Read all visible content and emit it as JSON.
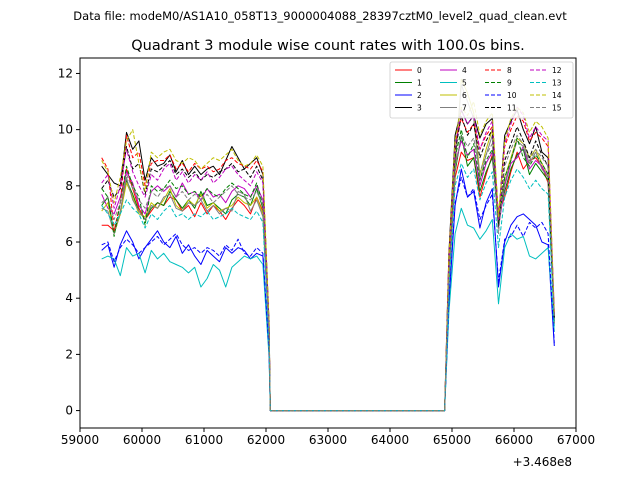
{
  "figure": {
    "suptitle": "Data file: modeM0/AS1A10_058T13_9000004088_28397cztM0_level2_quad_clean.evt"
  },
  "chart_data": {
    "type": "line",
    "title": "Quadrant 3 module wise count rates with 100.0s bins.",
    "xlabel": "",
    "ylabel": "",
    "x_offset_label": "+3.468e8",
    "xlim": [
      59000,
      67000
    ],
    "ylim": [
      -0.62,
      12.55
    ],
    "x_ticks": [
      59000,
      60000,
      61000,
      62000,
      63000,
      64000,
      65000,
      66000,
      67000
    ],
    "x_tick_labels": [
      "59000",
      "60000",
      "61000",
      "62000",
      "63000",
      "64000",
      "65000",
      "66000",
      "67000"
    ],
    "y_ticks": [
      0,
      2,
      4,
      6,
      8,
      10,
      12
    ],
    "y_tick_labels": [
      "0",
      "2",
      "4",
      "6",
      "8",
      "10",
      "12"
    ],
    "grid": false,
    "legend_position": "top-right",
    "legend_columns": 4,
    "gaps": [
      [
        62070,
        64880
      ]
    ],
    "segments": [
      {
        "x0": 59350,
        "step": 100,
        "n": 28
      },
      {
        "x0": 64950,
        "step": 100,
        "n": 18
      }
    ],
    "series": [
      {
        "name": "0",
        "color": "#ff0000",
        "dash": false,
        "seg1": [
          6.6,
          6.6,
          6.4,
          7.0,
          8.6,
          7.9,
          7.2,
          6.8,
          7.1,
          7.4,
          7.3,
          7.6,
          7.5,
          7.1,
          7.3,
          6.9,
          7.4,
          7.0,
          7.3,
          7.1,
          6.8,
          7.2,
          7.5,
          7.3,
          7.0,
          7.6,
          7.1,
          2.6
        ],
        "seg2": [
          4.5,
          8.3,
          9.2,
          8.9,
          9.0,
          7.6,
          8.4,
          9.1,
          7.0,
          7.6,
          8.5,
          9.2,
          8.6,
          8.9,
          9.0,
          8.7,
          8.1,
          3.2
        ]
      },
      {
        "name": "1",
        "color": "#008000",
        "dash": false,
        "seg1": [
          7.3,
          7.6,
          6.3,
          7.0,
          8.2,
          7.7,
          7.1,
          6.8,
          7.2,
          7.4,
          7.3,
          7.8,
          7.5,
          7.2,
          7.5,
          7.2,
          7.8,
          7.3,
          7.4,
          7.2,
          7.0,
          7.5,
          7.7,
          7.6,
          7.3,
          7.9,
          7.2,
          2.6
        ],
        "seg2": [
          4.5,
          8.5,
          9.8,
          8.7,
          9.0,
          7.8,
          8.5,
          9.0,
          6.8,
          7.8,
          8.6,
          9.1,
          9.3,
          8.4,
          8.8,
          8.5,
          8.2,
          3.1
        ]
      },
      {
        "name": "2",
        "color": "#0000ff",
        "dash": false,
        "seg1": [
          5.7,
          5.9,
          5.1,
          5.9,
          6.4,
          6.0,
          5.4,
          5.8,
          6.1,
          6.4,
          6.0,
          5.8,
          6.2,
          5.6,
          5.9,
          5.5,
          5.2,
          5.7,
          5.5,
          5.3,
          5.8,
          5.6,
          5.8,
          5.7,
          5.4,
          5.6,
          5.5,
          2.0
        ],
        "seg2": [
          3.8,
          7.3,
          8.6,
          7.6,
          7.8,
          6.5,
          7.4,
          7.9,
          4.4,
          6.0,
          6.6,
          6.9,
          7.0,
          6.8,
          6.6,
          6.0,
          5.9,
          2.3
        ]
      },
      {
        "name": "3",
        "color": "#000000",
        "dash": false,
        "seg1": [
          8.7,
          8.4,
          8.1,
          8.0,
          9.9,
          9.3,
          9.6,
          8.2,
          9.0,
          8.7,
          8.8,
          9.1,
          8.5,
          8.9,
          8.4,
          8.7,
          8.4,
          8.6,
          8.7,
          8.4,
          8.9,
          9.4,
          9.0,
          8.6,
          8.8,
          9.0,
          8.4,
          3.1
        ],
        "seg2": [
          5.6,
          9.8,
          10.7,
          10.2,
          10.5,
          9.7,
          10.2,
          10.4,
          6.8,
          9.8,
          10.3,
          10.7,
          10.0,
          9.5,
          10.1,
          9.2,
          9.0,
          3.4
        ]
      },
      {
        "name": "4",
        "color": "#bf00bf",
        "dash": false,
        "seg1": [
          7.7,
          7.2,
          7.0,
          7.6,
          8.5,
          8.1,
          7.3,
          7.0,
          7.8,
          8.0,
          7.8,
          8.0,
          7.6,
          8.1,
          7.7,
          7.8,
          7.5,
          7.9,
          7.6,
          7.7,
          7.4,
          7.8,
          8.0,
          7.9,
          7.6,
          8.0,
          7.5,
          2.8
        ],
        "seg2": [
          4.8,
          8.8,
          9.6,
          9.1,
          9.3,
          8.0,
          8.8,
          9.2,
          6.5,
          8.0,
          8.8,
          9.0,
          9.4,
          8.6,
          8.9,
          8.7,
          8.3,
          3.2
        ]
      },
      {
        "name": "5",
        "color": "#00bfbf",
        "dash": false,
        "seg1": [
          5.4,
          5.5,
          5.4,
          4.8,
          5.8,
          5.5,
          5.6,
          4.9,
          5.7,
          5.4,
          5.6,
          5.3,
          5.2,
          5.1,
          4.9,
          5.1,
          4.4,
          4.7,
          5.2,
          5.0,
          4.4,
          5.1,
          5.3,
          5.5,
          5.4,
          5.5,
          5.2,
          1.9
        ],
        "seg2": [
          3.5,
          6.3,
          7.2,
          6.6,
          6.5,
          6.1,
          6.4,
          6.8,
          3.8,
          5.8,
          6.3,
          6.1,
          6.2,
          5.5,
          5.4,
          5.6,
          5.8,
          2.8
        ]
      },
      {
        "name": "6",
        "color": "#bfbf00",
        "dash": false,
        "seg1": [
          7.1,
          7.4,
          6.3,
          7.0,
          8.1,
          7.6,
          7.0,
          6.9,
          7.4,
          7.2,
          7.5,
          7.9,
          7.3,
          7.1,
          7.5,
          7.3,
          7.7,
          7.2,
          7.4,
          7.1,
          7.2,
          7.3,
          7.6,
          7.4,
          7.3,
          7.6,
          7.0,
          2.6
        ],
        "seg2": [
          4.7,
          8.6,
          11.8,
          11.3,
          10.6,
          8.4,
          9.3,
          10.0,
          6.9,
          8.3,
          9.0,
          9.7,
          9.5,
          9.0,
          9.3,
          8.8,
          8.4,
          3.2
        ]
      },
      {
        "name": "7",
        "color": "#7f7f7f",
        "dash": false,
        "seg1": [
          7.2,
          7.1,
          6.3,
          7.1,
          8.3,
          7.5,
          7.1,
          6.8,
          7.3,
          7.2,
          7.6,
          7.7,
          7.2,
          7.1,
          7.4,
          7.3,
          7.5,
          7.1,
          7.3,
          7.0,
          7.2,
          7.1,
          7.8,
          7.7,
          7.1,
          7.5,
          6.9,
          2.5
        ],
        "seg2": [
          4.6,
          8.7,
          11.6,
          11.0,
          10.4,
          8.2,
          9.1,
          9.8,
          6.7,
          8.1,
          8.9,
          9.6,
          9.4,
          8.8,
          9.2,
          8.6,
          8.3,
          3.1
        ]
      },
      {
        "name": "8",
        "color": "#ff0000",
        "dash": true,
        "seg1": [
          9.0,
          8.6,
          6.4,
          7.4,
          9.8,
          9.0,
          9.2,
          8.0,
          8.8,
          8.9,
          8.9,
          9.1,
          8.6,
          8.8,
          8.5,
          8.8,
          8.6,
          8.7,
          8.5,
          8.6,
          8.9,
          9.0,
          8.8,
          8.7,
          8.6,
          8.9,
          8.5,
          3.0
        ],
        "seg2": [
          5.5,
          9.5,
          10.4,
          9.9,
          10.2,
          9.3,
          9.8,
          10.1,
          6.9,
          9.4,
          10.0,
          10.5,
          10.3,
          9.6,
          9.9,
          9.7,
          9.4,
          3.4
        ]
      },
      {
        "name": "9",
        "color": "#008000",
        "dash": true,
        "seg1": [
          7.9,
          7.6,
          6.2,
          7.4,
          8.7,
          8.0,
          7.6,
          6.6,
          8.0,
          7.8,
          7.9,
          8.2,
          7.9,
          8.0,
          7.7,
          7.8,
          7.6,
          7.9,
          7.7,
          7.6,
          7.9,
          8.1,
          7.9,
          7.7,
          7.6,
          8.1,
          7.3,
          2.7
        ],
        "seg2": [
          4.8,
          9.0,
          10.0,
          9.0,
          9.5,
          8.2,
          8.9,
          9.3,
          6.6,
          8.3,
          8.9,
          9.7,
          9.0,
          8.7,
          9.1,
          8.8,
          8.4,
          3.2
        ]
      },
      {
        "name": "10",
        "color": "#0000ff",
        "dash": true,
        "seg1": [
          5.9,
          6.0,
          5.3,
          5.8,
          6.1,
          5.9,
          5.6,
          5.8,
          6.0,
          6.2,
          5.9,
          6.1,
          6.3,
          5.9,
          5.7,
          5.8,
          5.6,
          5.8,
          5.7,
          5.5,
          5.9,
          5.7,
          6.1,
          5.6,
          5.5,
          5.8,
          5.6,
          2.1
        ],
        "seg2": [
          3.9,
          7.4,
          8.3,
          7.6,
          7.9,
          6.8,
          7.3,
          7.7,
          4.6,
          6.1,
          6.2,
          6.6,
          6.2,
          6.7,
          6.5,
          6.7,
          6.3,
          2.4
        ]
      },
      {
        "name": "11",
        "color": "#000000",
        "dash": true,
        "seg1": [
          7.9,
          8.2,
          7.6,
          7.9,
          9.4,
          8.6,
          8.8,
          7.7,
          8.6,
          8.5,
          8.7,
          8.9,
          8.4,
          8.6,
          8.3,
          8.5,
          8.2,
          8.4,
          8.3,
          8.5,
          8.6,
          8.8,
          8.5,
          8.6,
          8.3,
          8.7,
          8.2,
          2.9
        ],
        "seg2": [
          5.1,
          9.2,
          10.5,
          9.8,
          10.2,
          9.0,
          9.6,
          10.0,
          6.5,
          8.9,
          9.5,
          10.1,
          9.6,
          9.0,
          9.6,
          9.1,
          8.7,
          3.3
        ]
      },
      {
        "name": "12",
        "color": "#bf00bf",
        "dash": true,
        "seg1": [
          8.1,
          8.4,
          7.2,
          8.0,
          9.3,
          8.5,
          8.0,
          7.6,
          8.4,
          8.2,
          8.6,
          8.8,
          8.2,
          8.5,
          8.1,
          8.4,
          8.2,
          8.5,
          8.1,
          8.3,
          8.6,
          8.7,
          8.4,
          8.2,
          8.0,
          8.5,
          8.1,
          2.9
        ],
        "seg2": [
          5.2,
          9.4,
          10.7,
          10.2,
          10.5,
          9.3,
          9.9,
          10.3,
          6.8,
          9.5,
          10.2,
          10.8,
          10.5,
          9.7,
          10.1,
          9.8,
          9.6,
          3.5
        ]
      },
      {
        "name": "13",
        "color": "#00bfbf",
        "dash": true,
        "seg1": [
          7.3,
          7.0,
          6.6,
          7.0,
          7.5,
          7.2,
          7.0,
          6.5,
          7.0,
          6.8,
          7.1,
          7.3,
          6.9,
          7.0,
          6.8,
          7.0,
          6.9,
          7.1,
          6.8,
          6.9,
          7.0,
          7.2,
          7.0,
          6.9,
          6.8,
          7.1,
          6.7,
          2.5
        ],
        "seg2": [
          4.4,
          8.0,
          8.8,
          8.3,
          8.6,
          7.5,
          8.1,
          8.5,
          5.8,
          7.6,
          8.2,
          8.6,
          8.3,
          7.9,
          8.2,
          7.9,
          7.7,
          3.0
        ]
      },
      {
        "name": "14",
        "color": "#bfbf00",
        "dash": true,
        "seg1": [
          8.9,
          8.5,
          7.4,
          8.3,
          9.6,
          10.0,
          8.8,
          7.8,
          9.2,
          9.0,
          9.2,
          9.3,
          8.9,
          8.8,
          9.0,
          8.9,
          8.6,
          8.8,
          9.0,
          8.9,
          9.1,
          9.3,
          8.9,
          8.7,
          8.8,
          9.1,
          8.7,
          3.1
        ],
        "seg2": [
          5.4,
          9.6,
          10.8,
          10.5,
          11.0,
          9.8,
          10.3,
          10.6,
          6.9,
          9.6,
          10.4,
          10.8,
          10.6,
          9.9,
          10.3,
          10.1,
          9.7,
          3.5
        ]
      },
      {
        "name": "15",
        "color": "#7f7f7f",
        "dash": true,
        "seg1": [
          7.4,
          7.6,
          6.8,
          7.4,
          8.4,
          7.9,
          7.5,
          7.2,
          7.8,
          7.6,
          7.9,
          8.0,
          7.6,
          7.8,
          7.5,
          7.7,
          7.5,
          7.7,
          7.4,
          7.6,
          7.8,
          8.0,
          7.7,
          7.6,
          7.5,
          7.8,
          7.3,
          2.7
        ],
        "seg2": [
          4.7,
          8.6,
          9.8,
          9.4,
          9.7,
          8.5,
          9.1,
          9.5,
          6.3,
          8.7,
          9.3,
          9.8,
          9.5,
          8.9,
          9.3,
          9.0,
          8.7,
          3.3
        ]
      }
    ]
  }
}
